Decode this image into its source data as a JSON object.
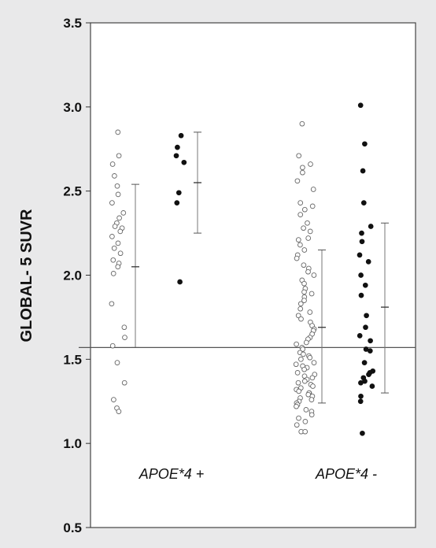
{
  "chart_data": {
    "type": "scatter",
    "ylabel": "GLOBAL- 5  SUVR",
    "ylim": [
      0.5,
      3.5
    ],
    "yticks": [
      "0.5",
      "1.0",
      "1.5",
      "2.0",
      "2.5",
      "3.0",
      "3.5"
    ],
    "grid": false,
    "reference_line": 1.57,
    "groups": [
      "APOE*4 +",
      "APOE*4 -"
    ],
    "series": [
      {
        "group": "APOE*4 +",
        "marker": "open-circle",
        "mean": 2.05,
        "sd_low": 1.57,
        "sd_high": 2.54,
        "values": [
          2.85,
          2.71,
          2.66,
          2.59,
          2.53,
          2.48,
          2.43,
          2.37,
          2.34,
          2.31,
          2.29,
          2.28,
          2.26,
          2.23,
          2.19,
          2.16,
          2.13,
          2.09,
          2.07,
          2.05,
          2.01,
          1.83,
          1.69,
          1.63,
          1.58,
          1.48,
          1.36,
          1.26,
          1.21,
          1.19
        ]
      },
      {
        "group": "APOE*4 +",
        "marker": "filled-circle",
        "mean": 2.55,
        "sd_low": 2.25,
        "sd_high": 2.85,
        "values": [
          2.83,
          2.76,
          2.71,
          2.67,
          2.49,
          2.43,
          1.96
        ]
      },
      {
        "group": "APOE*4 -",
        "marker": "open-circle",
        "mean": 1.69,
        "sd_low": 1.24,
        "sd_high": 2.15,
        "values": [
          2.9,
          2.71,
          2.66,
          2.64,
          2.61,
          2.56,
          2.51,
          2.43,
          2.41,
          2.39,
          2.36,
          2.31,
          2.28,
          2.26,
          2.22,
          2.21,
          2.18,
          2.15,
          2.12,
          2.1,
          2.06,
          2.04,
          2.02,
          2.0,
          1.97,
          1.95,
          1.92,
          1.9,
          1.89,
          1.87,
          1.85,
          1.83,
          1.8,
          1.78,
          1.76,
          1.74,
          1.72,
          1.7,
          1.68,
          1.67,
          1.65,
          1.63,
          1.62,
          1.6,
          1.59,
          1.57,
          1.56,
          1.54,
          1.53,
          1.52,
          1.51,
          1.5,
          1.48,
          1.47,
          1.46,
          1.45,
          1.44,
          1.42,
          1.41,
          1.4,
          1.39,
          1.38,
          1.37,
          1.36,
          1.35,
          1.34,
          1.33,
          1.32,
          1.31,
          1.3,
          1.3,
          1.29,
          1.28,
          1.27,
          1.26,
          1.25,
          1.24,
          1.23,
          1.22,
          1.2,
          1.19,
          1.17,
          1.15,
          1.13,
          1.11,
          1.07,
          1.07
        ]
      },
      {
        "group": "APOE*4 -",
        "marker": "filled-circle",
        "mean": 1.81,
        "sd_low": 1.3,
        "sd_high": 2.31,
        "values": [
          3.01,
          2.78,
          2.62,
          2.43,
          2.29,
          2.25,
          2.2,
          2.12,
          2.08,
          2.0,
          1.94,
          1.88,
          1.76,
          1.69,
          1.64,
          1.61,
          1.56,
          1.55,
          1.48,
          1.43,
          1.42,
          1.41,
          1.39,
          1.37,
          1.36,
          1.34,
          1.28,
          1.25,
          1.06
        ]
      }
    ]
  }
}
